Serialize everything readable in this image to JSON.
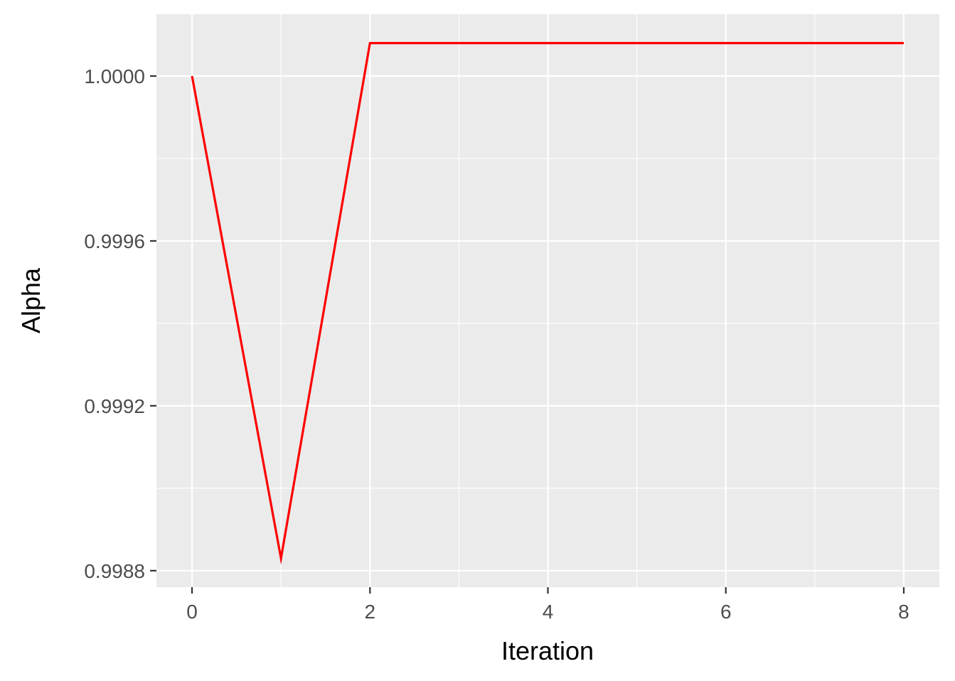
{
  "chart_data": {
    "type": "line",
    "title": "",
    "xlabel": "Iteration",
    "ylabel": "Alpha",
    "xlim": [
      -0.4,
      8.4
    ],
    "ylim": [
      0.99876,
      1.00015
    ],
    "x_ticks": [
      0,
      2,
      4,
      6,
      8
    ],
    "x_tick_labels": [
      "0",
      "2",
      "4",
      "6",
      "8"
    ],
    "x_minor_ticks": [
      1,
      3,
      5,
      7
    ],
    "y_ticks": [
      0.9988,
      0.9992,
      0.9996,
      1.0
    ],
    "y_tick_labels": [
      "0.9988",
      "0.9992",
      "0.9996",
      "1.0000"
    ],
    "y_minor_ticks": [
      0.999,
      0.9994,
      0.9998
    ],
    "grid": true,
    "legend": "none",
    "series": [
      {
        "color": "#ff0000",
        "x": [
          0,
          1,
          2,
          3,
          4,
          5,
          6,
          7,
          8
        ],
        "y": [
          1.0,
          0.99883,
          1.00008,
          1.00008,
          1.00008,
          1.00008,
          1.00008,
          1.00008,
          1.00008
        ]
      }
    ],
    "colors": {
      "panel_background": "#ebebeb",
      "grid": "#ffffff",
      "tick_text": "#4d4d4d",
      "tick_mark": "#333333",
      "axis_title": "#000000"
    }
  }
}
